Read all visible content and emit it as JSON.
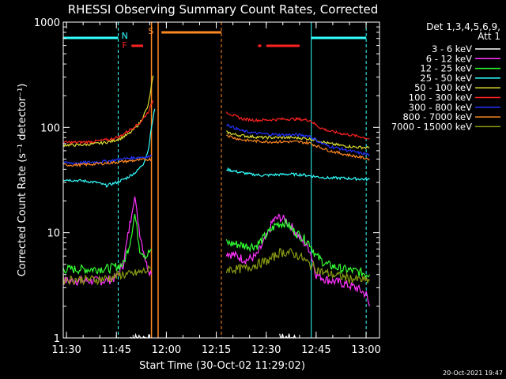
{
  "chart_data": {
    "type": "line",
    "title": "RHESSI Observing Summary Count Rates, Corrected",
    "xlabel": "Start Time (30-Oct-02 11:29:02)",
    "ylabel": "Corrected Count Rate (s⁻¹ detector⁻¹)",
    "y_scale": "log",
    "ylim": [
      1,
      1000
    ],
    "xlim_minutes": [
      0,
      95
    ],
    "x_tick_minutes": [
      0.97,
      15.97,
      30.97,
      45.97,
      60.97,
      75.97,
      90.97
    ],
    "x_tick_labels": [
      "11:30",
      "11:45",
      "12:00",
      "12:15",
      "12:30",
      "12:45",
      "13:00"
    ],
    "y_ticks": [
      1,
      10,
      100,
      1000
    ],
    "y_tick_labels": [
      "1",
      "10",
      "100",
      "1000"
    ],
    "legend_header": "Det 1,3,4,5,6,9,",
    "legend_header2": "Att 1",
    "legend_placement": "right",
    "timestamp": "20-Oct-2021 19:47",
    "flag_labels": {
      "night": "N",
      "saa": "S",
      "flare": "F"
    },
    "flags": {
      "night": [
        [
          0,
          16.5
        ],
        [
          74.5,
          91
        ]
      ],
      "saa": [
        29.5,
        47.5
      ],
      "flare": [
        [
          20.5,
          24
        ],
        [
          58.5,
          59.5
        ],
        [
          61,
          71
        ]
      ]
    },
    "vertical_lines": {
      "cyan_solid": [
        0,
        74.5
      ],
      "cyan_dashed": [
        16.5,
        91
      ],
      "orange_solid": [
        26.5,
        28.5
      ],
      "orange_dashed": [
        47.5
      ]
    },
    "gap_minutes": [
      28.5,
      49
    ],
    "series": [
      {
        "name": "3 - 6 keV",
        "color": "#ffffff",
        "segments": [
          [
            [
              20,
              1
            ],
            [
              21,
              1
            ],
            [
              22,
              1
            ],
            [
              23,
              1
            ],
            [
              25,
              1
            ],
            [
              26,
              1
            ]
          ],
          [
            [
              65,
              1
            ],
            [
              67,
              1
            ],
            [
              70,
              1
            ]
          ]
        ]
      },
      {
        "name": "6 - 12 keV",
        "color": "#ff33ff",
        "segments": [
          [
            [
              0,
              3.5
            ],
            [
              8,
              3.5
            ],
            [
              12,
              3.5
            ],
            [
              14,
              3.6
            ],
            [
              16,
              3.8
            ],
            [
              18,
              5
            ],
            [
              20,
              12
            ],
            [
              21.5,
              22
            ],
            [
              23,
              10
            ],
            [
              25,
              5
            ],
            [
              26.5,
              4
            ]
          ],
          [
            [
              49,
              6.5
            ],
            [
              52,
              6
            ],
            [
              55,
              5.5
            ],
            [
              58,
              6
            ],
            [
              61,
              9
            ],
            [
              63,
              13
            ],
            [
              65,
              14
            ],
            [
              67,
              13
            ],
            [
              69,
              11
            ],
            [
              71,
              9
            ],
            [
              74,
              7
            ],
            [
              76,
              4
            ],
            [
              79,
              3.6
            ],
            [
              84,
              3.3
            ],
            [
              88,
              3
            ],
            [
              91,
              2.6
            ],
            [
              92,
              2
            ]
          ]
        ]
      },
      {
        "name": "12 - 25 keV",
        "color": "#33ff33",
        "segments": [
          [
            [
              0,
              4.5
            ],
            [
              8,
              4.5
            ],
            [
              14,
              4.6
            ],
            [
              18,
              5
            ],
            [
              20,
              8
            ],
            [
              21.5,
              15
            ],
            [
              23,
              7
            ],
            [
              25,
              6
            ],
            [
              26.5,
              7
            ]
          ],
          [
            [
              49,
              8
            ],
            [
              52,
              7.8
            ],
            [
              55,
              7.5
            ],
            [
              58,
              7.5
            ],
            [
              61,
              9.5
            ],
            [
              64,
              12
            ],
            [
              67,
              12.5
            ],
            [
              69,
              10.5
            ],
            [
              71,
              9.5
            ],
            [
              74,
              8
            ],
            [
              76,
              6
            ],
            [
              79,
              5
            ],
            [
              84,
              4.5
            ],
            [
              88,
              4.3
            ],
            [
              92,
              4
            ]
          ]
        ]
      },
      {
        "name": "25 - 50 keV",
        "color": "#33ffff",
        "segments": [
          [
            [
              0,
              32
            ],
            [
              6,
              31
            ],
            [
              10,
              30
            ],
            [
              13,
              28
            ],
            [
              16,
              30
            ],
            [
              19,
              33
            ],
            [
              22,
              38
            ],
            [
              24,
              45
            ],
            [
              25.5,
              60
            ],
            [
              26.5,
              100
            ],
            [
              27.5,
              150
            ]
          ],
          [
            [
              49,
              40
            ],
            [
              52,
              38
            ],
            [
              56,
              36
            ],
            [
              60,
              35
            ],
            [
              64,
              35.5
            ],
            [
              68,
              36
            ],
            [
              72,
              35.5
            ],
            [
              76,
              34
            ],
            [
              80,
              33
            ],
            [
              84,
              33
            ],
            [
              88,
              32.5
            ],
            [
              92,
              32
            ]
          ]
        ]
      },
      {
        "name": "50 - 100 keV",
        "color": "#dddd33",
        "segments": [
          [
            [
              0,
              68
            ],
            [
              5,
              68
            ],
            [
              10,
              70
            ],
            [
              14,
              73
            ],
            [
              17,
              78
            ],
            [
              20,
              88
            ],
            [
              23,
              110
            ],
            [
              25.5,
              160
            ],
            [
              27,
              310
            ]
          ],
          [
            [
              49,
              90
            ],
            [
              52,
              85
            ],
            [
              56,
              82
            ],
            [
              60,
              80
            ],
            [
              64,
              80
            ],
            [
              68,
              80
            ],
            [
              72,
              79
            ],
            [
              76,
              76
            ],
            [
              80,
              70
            ],
            [
              84,
              67
            ],
            [
              88,
              65
            ],
            [
              92,
              64
            ]
          ]
        ]
      },
      {
        "name": "100 - 300 keV",
        "color": "#ff2222",
        "segments": [
          [
            [
              0,
              72
            ],
            [
              5,
              72
            ],
            [
              10,
              74
            ],
            [
              14,
              77
            ],
            [
              17,
              82
            ],
            [
              20,
              95
            ],
            [
              23,
              110
            ],
            [
              25.5,
              140
            ],
            [
              27,
              180
            ]
          ],
          [
            [
              49,
              140
            ],
            [
              51,
              130
            ],
            [
              54,
              120
            ],
            [
              58,
              117
            ],
            [
              62,
              118
            ],
            [
              66,
              120
            ],
            [
              70,
              120
            ],
            [
              74,
              117
            ],
            [
              77,
              100
            ],
            [
              80,
              92
            ],
            [
              84,
              87
            ],
            [
              88,
              83
            ],
            [
              92,
              78
            ]
          ]
        ]
      },
      {
        "name": "300 - 800 keV",
        "color": "#2233ff",
        "segments": [
          [
            [
              0,
              46
            ],
            [
              5,
              46
            ],
            [
              10,
              47
            ],
            [
              14,
              48
            ],
            [
              17,
              50
            ],
            [
              20,
              51
            ],
            [
              23,
              52
            ],
            [
              26.5,
              53
            ]
          ],
          [
            [
              49,
              108
            ],
            [
              51,
              100
            ],
            [
              54,
              92
            ],
            [
              58,
              88
            ],
            [
              62,
              86
            ],
            [
              66,
              85
            ],
            [
              70,
              85
            ],
            [
              74,
              83
            ],
            [
              77,
              72
            ],
            [
              80,
              66
            ],
            [
              84,
              62
            ],
            [
              88,
              58
            ],
            [
              92,
              55
            ]
          ]
        ]
      },
      {
        "name": "800 - 7000 keV",
        "color": "#ff8822",
        "segments": [
          [
            [
              0,
              44
            ],
            [
              5,
              44
            ],
            [
              10,
              45
            ],
            [
              14,
              46
            ],
            [
              17,
              47
            ],
            [
              20,
              48
            ],
            [
              23,
              49
            ],
            [
              26.5,
              50
            ]
          ],
          [
            [
              49,
              85
            ],
            [
              51,
              80
            ],
            [
              54,
              76
            ],
            [
              58,
              74
            ],
            [
              62,
              73
            ],
            [
              66,
              73
            ],
            [
              70,
              73
            ],
            [
              74,
              71
            ],
            [
              77,
              65
            ],
            [
              80,
              60
            ],
            [
              84,
              56
            ],
            [
              88,
              53
            ],
            [
              92,
              50
            ]
          ]
        ]
      },
      {
        "name": "7000 - 15000 keV",
        "color": "#889911",
        "segments": [
          [
            [
              0,
              3.6
            ],
            [
              5,
              3.6
            ],
            [
              10,
              3.6
            ],
            [
              14,
              3.7
            ],
            [
              17,
              4
            ],
            [
              20,
              4
            ],
            [
              23,
              4.2
            ],
            [
              26.5,
              4.5
            ]
          ],
          [
            [
              49,
              4.5
            ],
            [
              52,
              4.5
            ],
            [
              55,
              4.6
            ],
            [
              58,
              5
            ],
            [
              62,
              5.5
            ],
            [
              65,
              6.5
            ],
            [
              68,
              6.5
            ],
            [
              71,
              6
            ],
            [
              74,
              5
            ],
            [
              78,
              4.2
            ],
            [
              84,
              3.8
            ],
            [
              88,
              3.6
            ],
            [
              92,
              3.5
            ]
          ]
        ]
      }
    ]
  }
}
